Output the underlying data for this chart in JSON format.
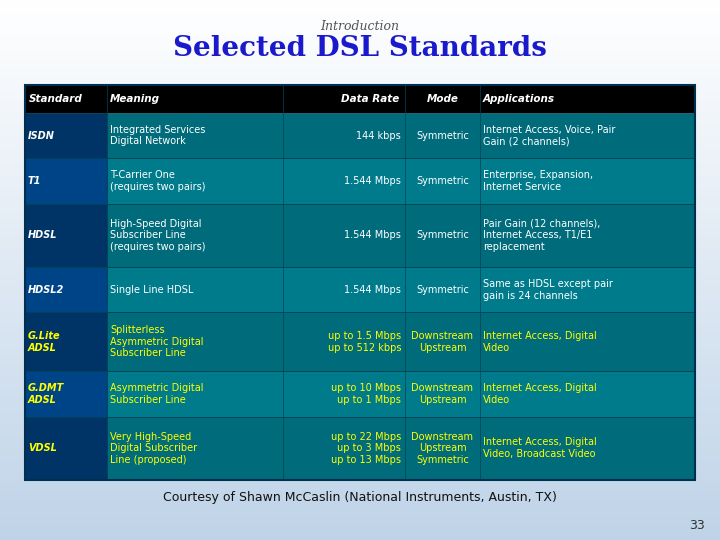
{
  "title": "Selected DSL Standards",
  "subtitle": "Introduction",
  "footer": "Courtesy of Shawn McCaslin (National Instruments, Austin, TX)",
  "page_num": "33",
  "title_color": "#1a1acc",
  "subtitle_color": "#555555",
  "footer_color": "#111111",
  "page_color": "#333333",
  "header_bg": "#000000",
  "header_text_color": "#ffffff",
  "standard_col_bg_odd": "#00336a",
  "standard_col_bg_even": "#004488",
  "row_bg_odd": "#006b7a",
  "row_bg_even": "#008090",
  "divider_color": "#004455",
  "columns": [
    "Standard",
    "Meaning",
    "Data Rate",
    "Mode",
    "Applications"
  ],
  "rows": [
    {
      "standard": "ISDN",
      "meaning": "Integrated Services\nDigital Network",
      "data_rate": "144 kbps",
      "mode": "Symmetric",
      "applications": "Internet Access, Voice, Pair\nGain (2 channels)",
      "text_color": "#ffffff",
      "std_bg": "#003366",
      "row_bg": "#006b7a"
    },
    {
      "standard": "T1",
      "meaning": "T-Carrier One\n(requires two pairs)",
      "data_rate": "1.544 Mbps",
      "mode": "Symmetric",
      "applications": "Enterprise, Expansion,\nInternet Service",
      "text_color": "#ffffff",
      "std_bg": "#004488",
      "row_bg": "#007b8c"
    },
    {
      "standard": "HDSL",
      "meaning": "High-Speed Digital\nSubscriber Line\n(requires two pairs)",
      "data_rate": "1.544 Mbps",
      "mode": "Symmetric",
      "applications": "Pair Gain (12 channels),\nInternet Access, T1/E1\nreplacement",
      "text_color": "#ffffff",
      "std_bg": "#003366",
      "row_bg": "#006b7a"
    },
    {
      "standard": "HDSL2",
      "meaning": "Single Line HDSL",
      "data_rate": "1.544 Mbps",
      "mode": "Symmetric",
      "applications": "Same as HDSL except pair\ngain is 24 channels",
      "text_color": "#ffffff",
      "std_bg": "#004488",
      "row_bg": "#007b8c"
    },
    {
      "standard": "G.Lite\nADSL",
      "meaning": "Splitterless\nAsymmetric Digital\nSubscriber Line",
      "data_rate": "up to 1.5 Mbps\nup to 512 kbps",
      "mode": "Downstream\nUpstream",
      "applications": "Internet Access, Digital\nVideo",
      "text_color": "#ffff00",
      "std_bg": "#003366",
      "row_bg": "#006b7a"
    },
    {
      "standard": "G.DMT\nADSL",
      "meaning": "Asymmetric Digital\nSubscriber Line",
      "data_rate": "up to 10 Mbps\nup to 1 Mbps",
      "mode": "Downstream\nUpstream",
      "applications": "Internet Access, Digital\nVideo",
      "text_color": "#ffff00",
      "std_bg": "#004488",
      "row_bg": "#007b8c"
    },
    {
      "standard": "VDSL",
      "meaning": "Very High-Speed\nDigital Subscriber\nLine (proposed)",
      "data_rate": "up to 22 Mbps\nup to 3 Mbps\nup to 13 Mbps",
      "mode": "Downstream\nUpstream\nSymmetric",
      "applications": "Internet Access, Digital\nVideo, Broadcast Video",
      "text_color": "#ffff00",
      "std_bg": "#003366",
      "row_bg": "#006b7a"
    }
  ]
}
